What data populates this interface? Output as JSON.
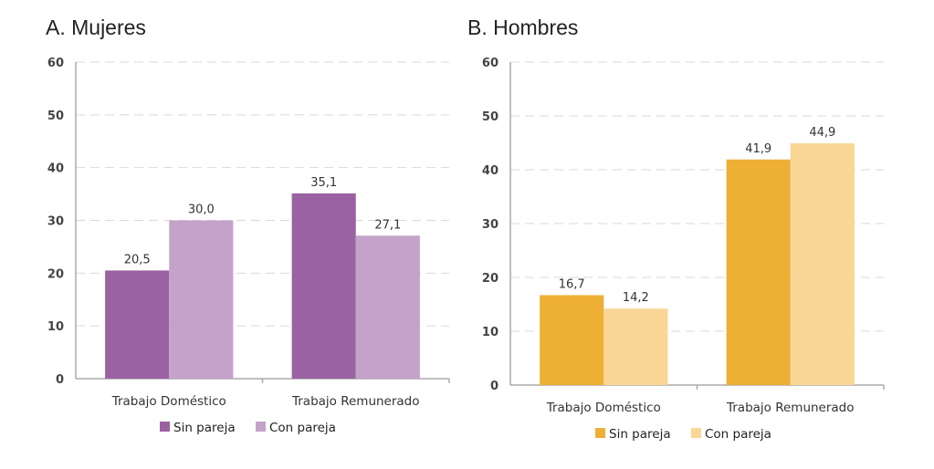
{
  "chart_data": [
    {
      "type": "bar",
      "title": "A. Mujeres",
      "categories": [
        "Trabajo Doméstico",
        "Trabajo Remunerado"
      ],
      "series": [
        {
          "name": "Sin pareja",
          "values": [
            20.5,
            35.1
          ],
          "labels": [
            "20,5",
            "35,1"
          ],
          "color": "#9a62a1"
        },
        {
          "name": "Con pareja",
          "values": [
            30.0,
            27.1
          ],
          "labels": [
            "30,0",
            "27,1"
          ],
          "color": "#c4a2ca"
        }
      ],
      "ylim": [
        0,
        60
      ],
      "yticks": [
        "0",
        "10",
        "20",
        "30",
        "40",
        "50",
        "60"
      ],
      "grid": true,
      "legend": "bottom"
    },
    {
      "type": "bar",
      "title": "B. Hombres",
      "categories": [
        "Trabajo Doméstico",
        "Trabajo Remunerado"
      ],
      "series": [
        {
          "name": "Sin pareja",
          "values": [
            16.7,
            41.9
          ],
          "labels": [
            "16,7",
            "41,9"
          ],
          "color": "#eeaf35"
        },
        {
          "name": "Con pareja",
          "values": [
            14.2,
            44.9
          ],
          "labels": [
            "14,2",
            "44,9"
          ],
          "color": "#fad697"
        }
      ],
      "ylim": [
        0,
        60
      ],
      "yticks": [
        "0",
        "10",
        "20",
        "30",
        "40",
        "50",
        "60"
      ],
      "grid": true,
      "legend": "bottom"
    }
  ]
}
